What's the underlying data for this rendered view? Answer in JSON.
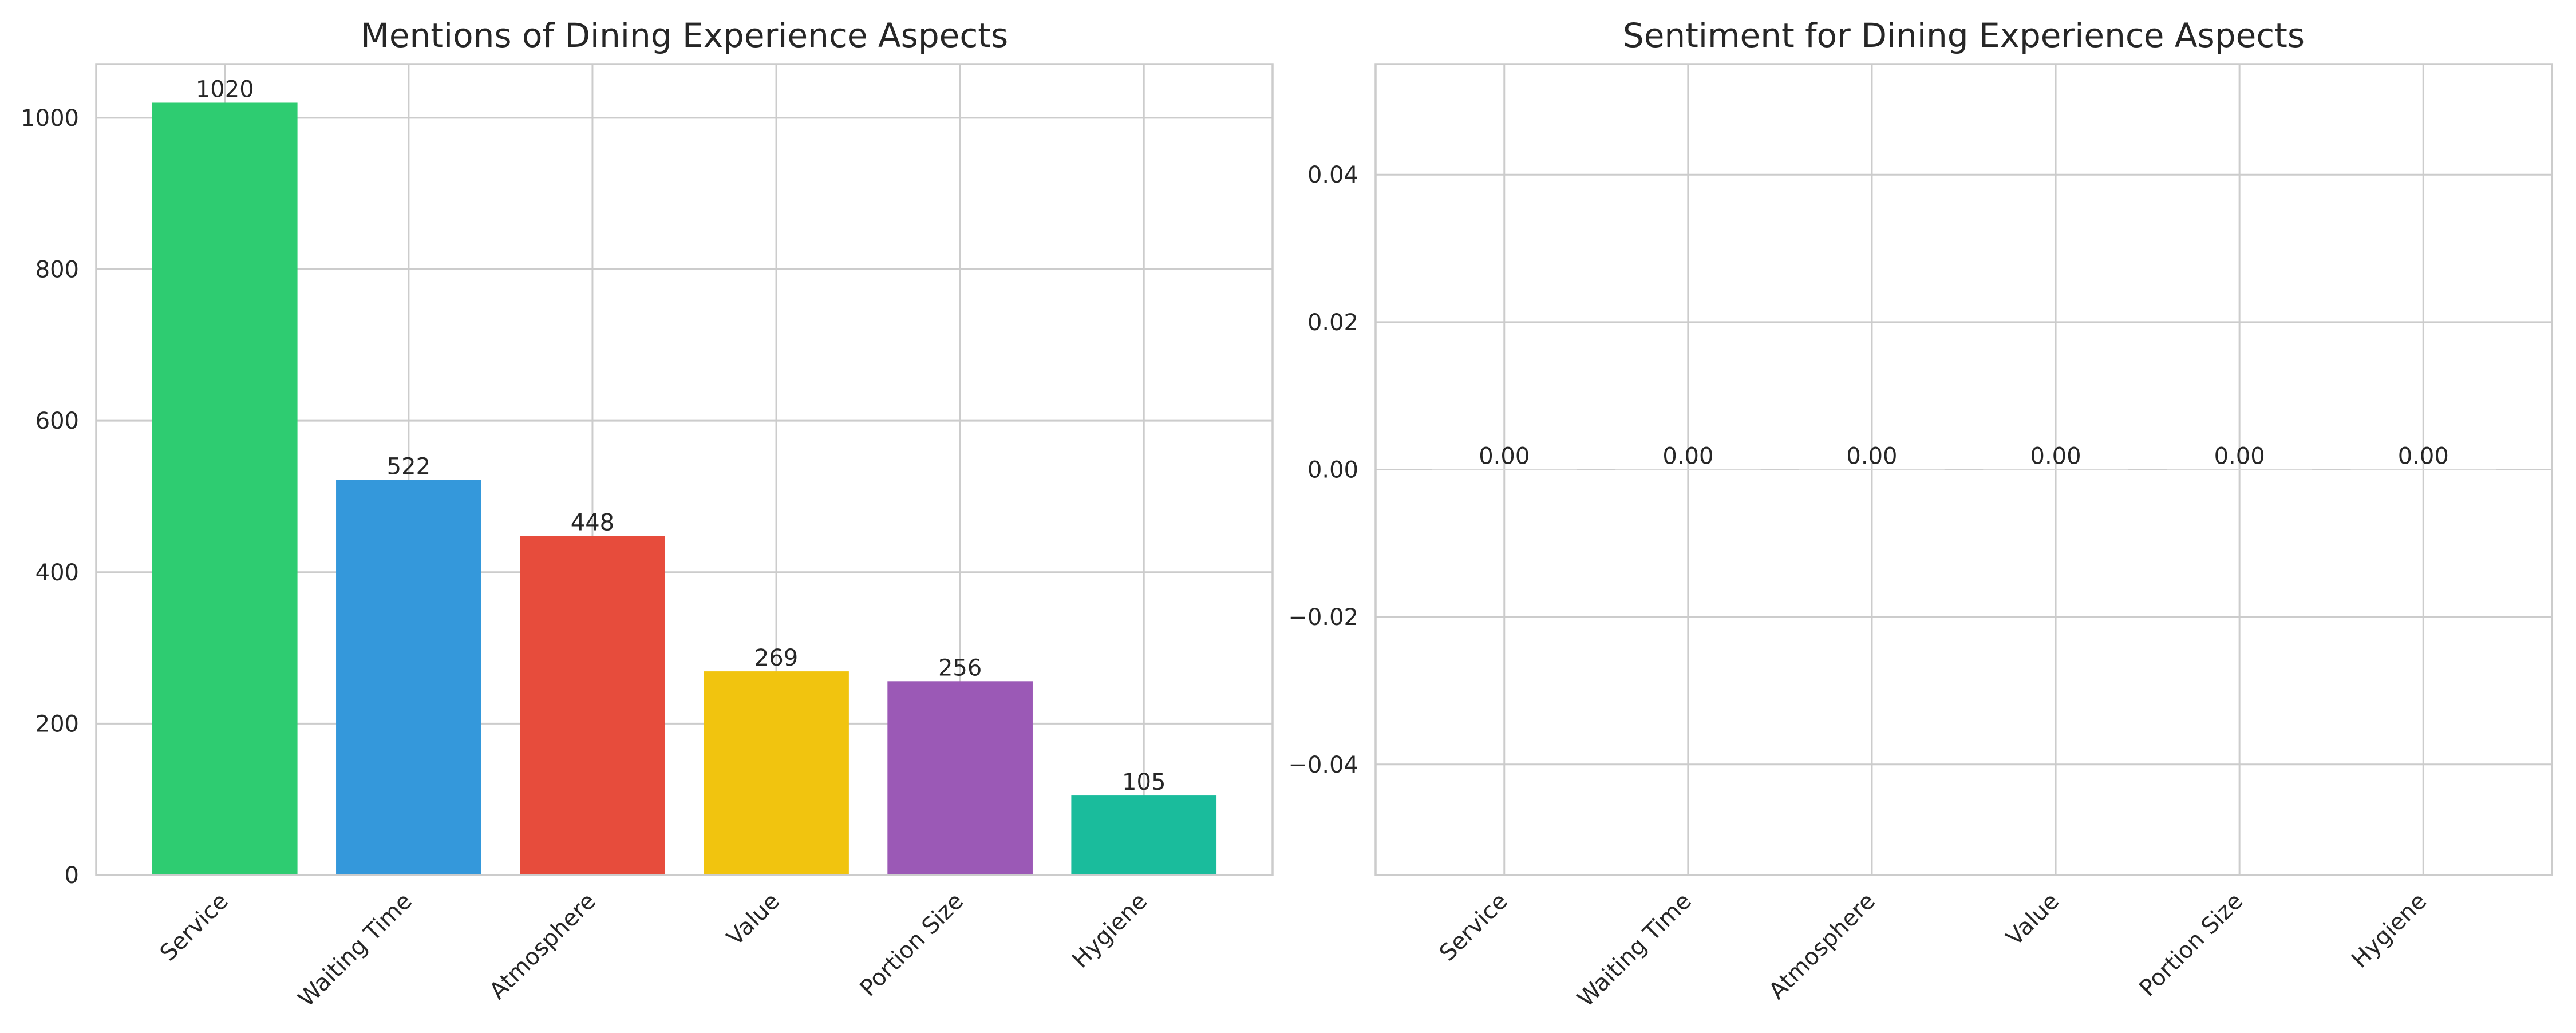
{
  "chart_data": [
    {
      "type": "bar",
      "title": "Mentions of Dining Experience Aspects",
      "xlabel": "",
      "ylabel": "",
      "categories": [
        "Service",
        "Waiting Time",
        "Atmosphere",
        "Value",
        "Portion Size",
        "Hygiene"
      ],
      "values": [
        1020,
        522,
        448,
        269,
        256,
        105
      ],
      "data_labels": [
        "1020",
        "522",
        "448",
        "269",
        "256",
        "105"
      ],
      "colors": [
        "#2ecc71",
        "#3498db",
        "#e74c3c",
        "#f1c40f",
        "#9b59b6",
        "#1abc9c"
      ],
      "ylim": [
        0,
        1071
      ],
      "yticks": [
        0,
        200,
        400,
        600,
        800,
        1000
      ],
      "ytick_labels": [
        "0",
        "200",
        "400",
        "600",
        "800",
        "1000"
      ],
      "grid": true,
      "legend": "none"
    },
    {
      "type": "bar",
      "title": "Sentiment for Dining Experience Aspects",
      "xlabel": "",
      "ylabel": "",
      "categories": [
        "Service",
        "Waiting Time",
        "Atmosphere",
        "Value",
        "Portion Size",
        "Hygiene"
      ],
      "values": [
        0,
        0,
        0,
        0,
        0,
        0
      ],
      "data_labels": [
        "0.00",
        "0.00",
        "0.00",
        "0.00",
        "0.00",
        "0.00"
      ],
      "colors": [
        "#d9d9d9",
        "#d9d9d9",
        "#d9d9d9",
        "#d9d9d9",
        "#d9d9d9",
        "#d9d9d9"
      ],
      "ylim": [
        -0.055,
        0.055
      ],
      "yticks": [
        -0.04,
        -0.02,
        0.0,
        0.02,
        0.04
      ],
      "ytick_labels": [
        "−0.04",
        "−0.02",
        "0.00",
        "0.02",
        "0.04"
      ],
      "grid": true,
      "legend": "none"
    }
  ]
}
